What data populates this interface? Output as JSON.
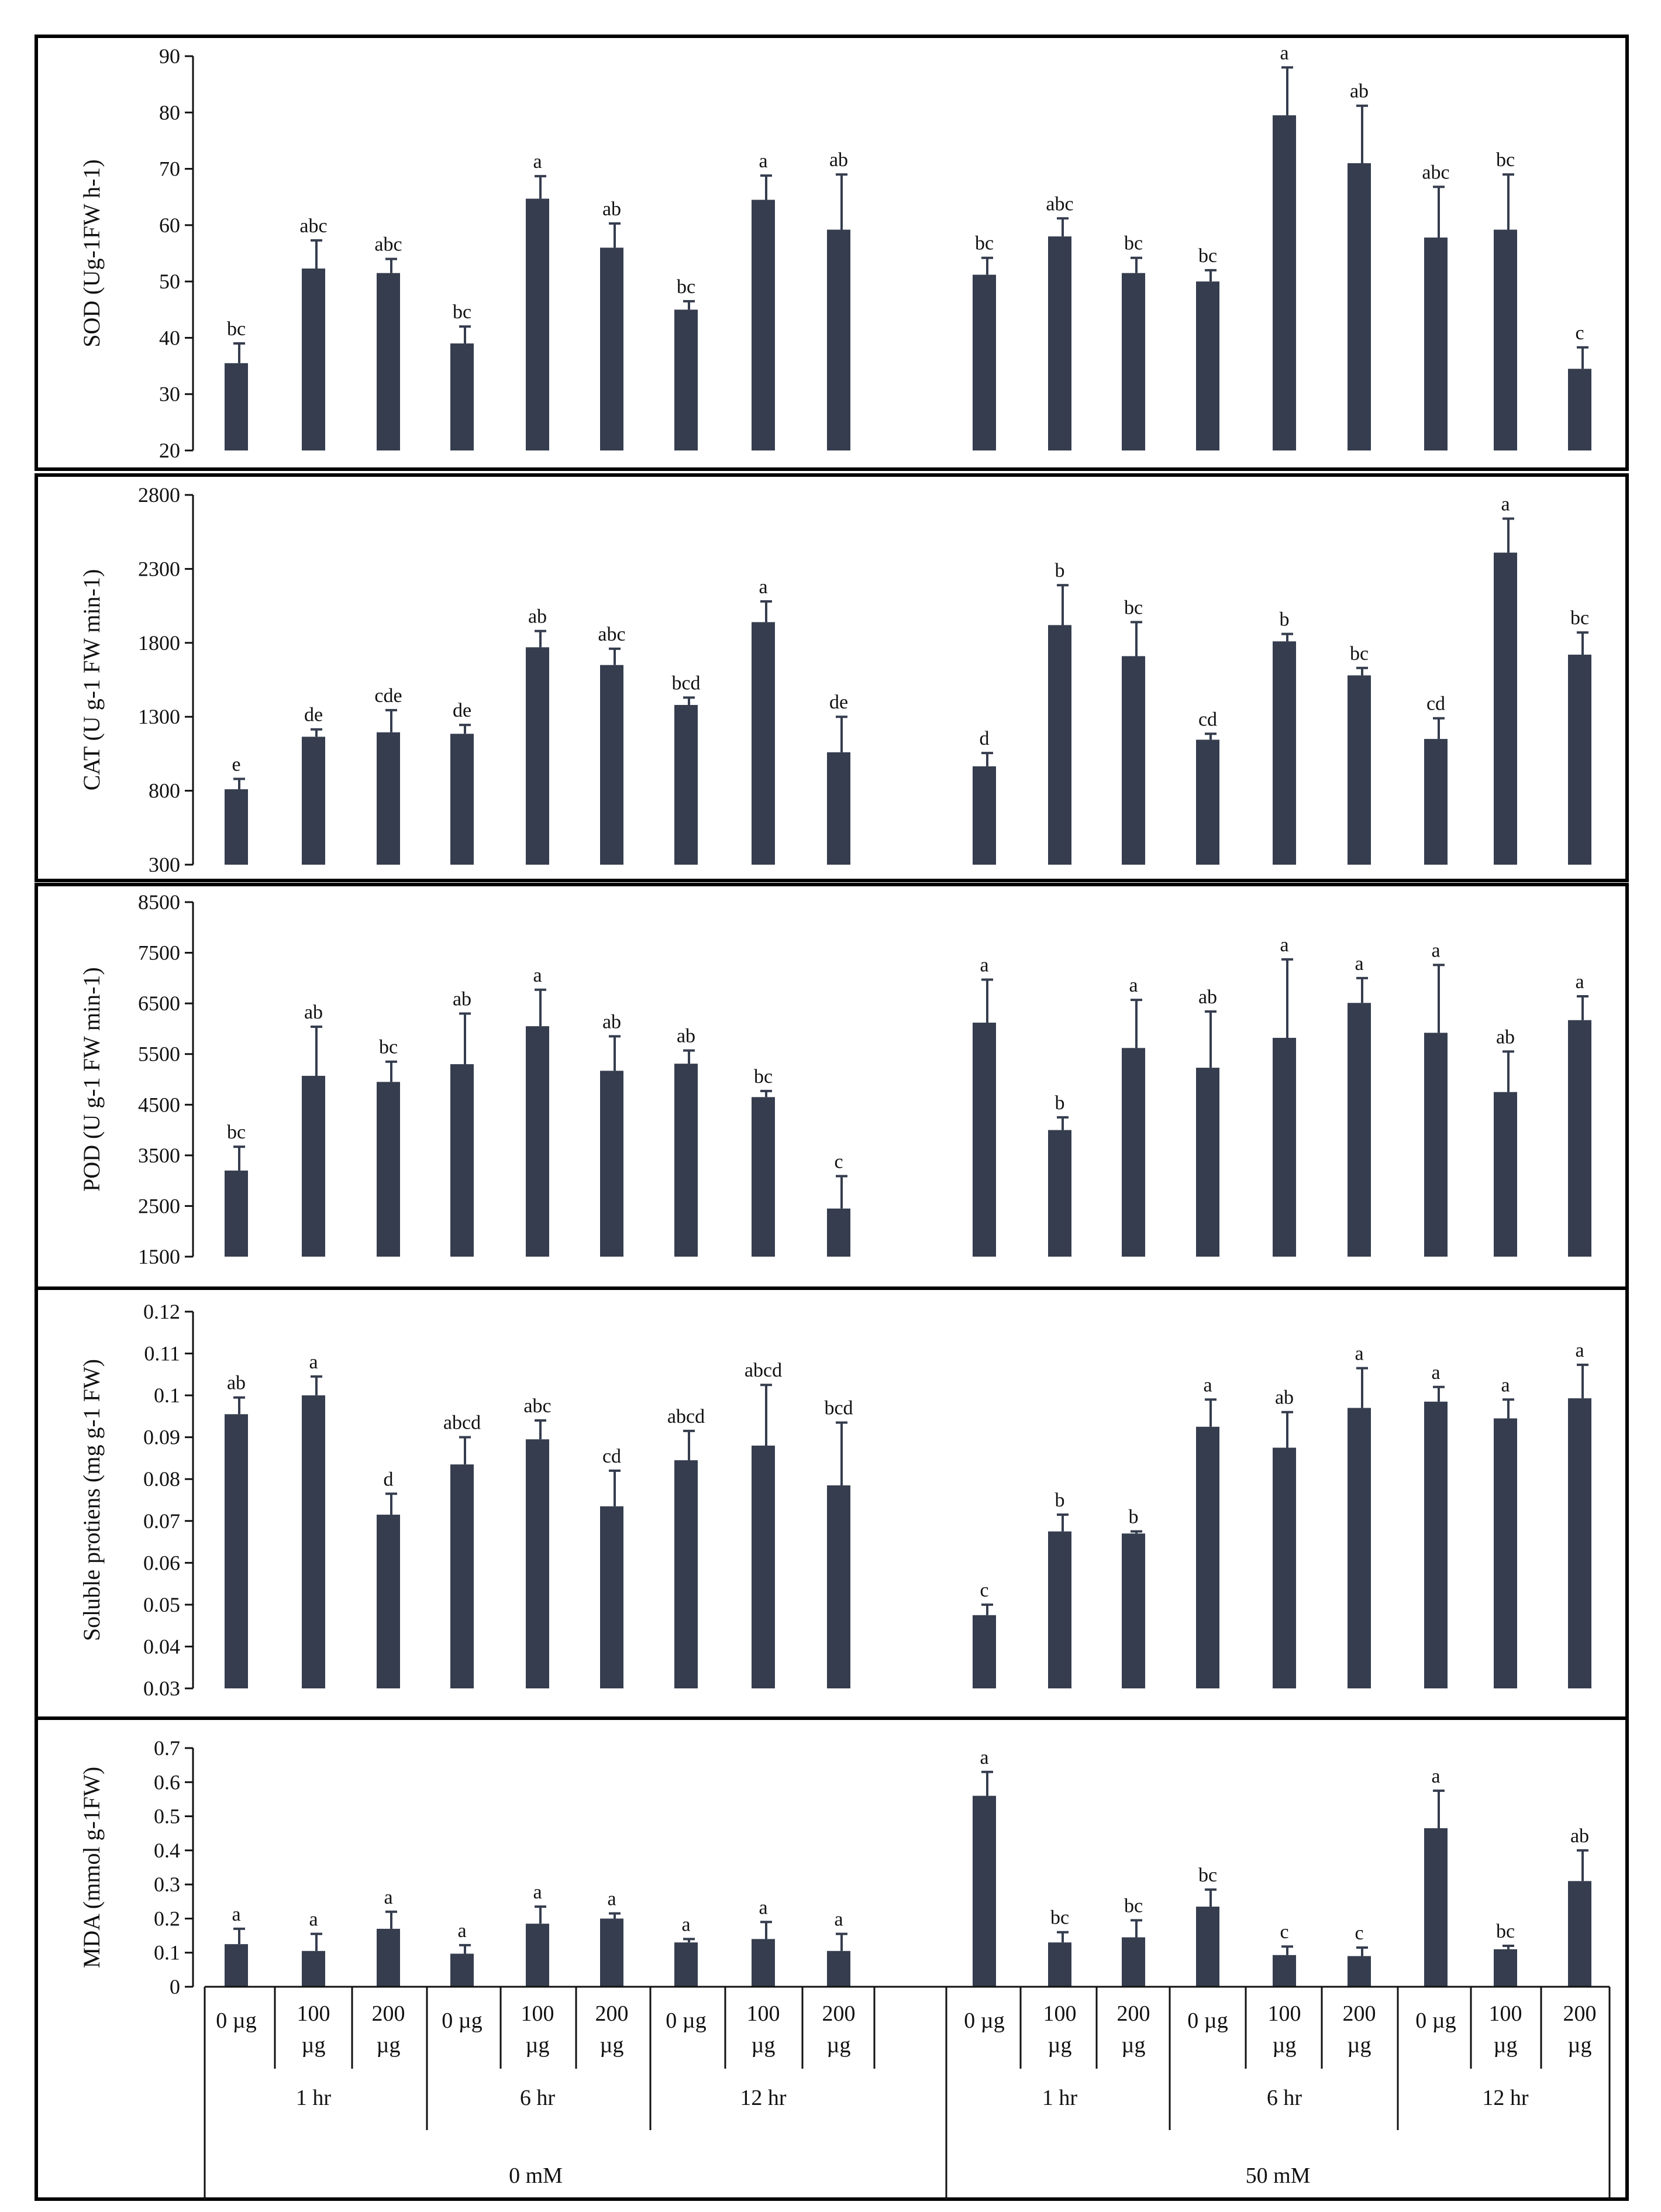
{
  "colors": {
    "bar": "#353d4e",
    "axis": "#111111",
    "frame": "#000000"
  },
  "categories": {
    "doses": [
      "0 µg",
      "100 µg",
      "200 µg"
    ],
    "dose_lines": [
      [
        "0 µg"
      ],
      [
        "100",
        "µg"
      ],
      [
        "200",
        "µg"
      ]
    ],
    "times": [
      "1 hr",
      "6 hr",
      "12 hr"
    ],
    "salt": [
      "0 mM",
      "50 mM"
    ]
  },
  "chart_data": [
    {
      "type": "bar",
      "title": "",
      "ylabel": "SOD (Ug-1FW h-1)",
      "ylim": [
        20,
        90
      ],
      "yticks": [
        20,
        30,
        40,
        50,
        60,
        70,
        80,
        90
      ],
      "groups": [
        "0 mM",
        "50 mM"
      ],
      "values": [
        [
          35.5,
          52.3,
          51.5,
          39.0,
          64.7,
          56.0,
          45.0,
          64.5,
          59.2
        ],
        [
          51.2,
          58.0,
          51.5,
          50.0,
          79.5,
          71.0,
          57.8,
          59.2,
          34.5
        ]
      ],
      "errors": [
        [
          3.5,
          5.0,
          2.5,
          3.0,
          4.0,
          4.3,
          1.5,
          4.3,
          9.8
        ],
        [
          3.0,
          3.2,
          2.7,
          2.0,
          8.5,
          10.2,
          9.0,
          9.8,
          3.8
        ]
      ],
      "labels": [
        [
          "bc",
          "abc",
          "abc",
          "bc",
          "a",
          "ab",
          "bc",
          "a",
          "ab"
        ],
        [
          "bc",
          "abc",
          "bc",
          "bc",
          "a",
          "ab",
          "abc",
          "bc",
          "c"
        ]
      ]
    },
    {
      "type": "bar",
      "title": "",
      "ylabel": "CAT (U g-1 FW min-1)",
      "ylim": [
        300,
        2800
      ],
      "yticks": [
        300,
        800,
        1300,
        1800,
        2300,
        2800
      ],
      "groups": [
        "0 mM",
        "50 mM"
      ],
      "values": [
        [
          810,
          1165,
          1195,
          1185,
          1770,
          1650,
          1380,
          1940,
          1060
        ],
        [
          965,
          1920,
          1710,
          1145,
          1810,
          1580,
          1150,
          2410,
          1720
        ]
      ],
      "errors": [
        [
          70,
          50,
          150,
          60,
          110,
          110,
          50,
          140,
          240
        ],
        [
          90,
          270,
          230,
          40,
          50,
          50,
          140,
          230,
          150
        ]
      ],
      "labels": [
        [
          "e",
          "de",
          "cde",
          "de",
          "ab",
          "abc",
          "bcd",
          "a",
          "de"
        ],
        [
          "d",
          "b",
          "bc",
          "cd",
          "b",
          "bc",
          "cd",
          "a",
          "bc"
        ]
      ]
    },
    {
      "type": "bar",
      "title": "",
      "ylabel": "POD (U g-1 FW min-1)",
      "ylim": [
        1500,
        8500
      ],
      "yticks": [
        1500,
        2500,
        3500,
        4500,
        5500,
        6500,
        7500,
        8500
      ],
      "groups": [
        "0 mM",
        "50 mM"
      ],
      "values": [
        [
          3200,
          5070,
          4950,
          5300,
          6050,
          5170,
          5310,
          4650,
          2450
        ],
        [
          6120,
          4000,
          5620,
          5230,
          5820,
          6510,
          5920,
          4750,
          6170
        ]
      ],
      "errors": [
        [
          470,
          970,
          400,
          1000,
          720,
          680,
          260,
          120,
          640
        ],
        [
          850,
          250,
          950,
          1110,
          1550,
          490,
          1340,
          800,
          470
        ]
      ],
      "labels": [
        [
          "bc",
          "ab",
          "bc",
          "ab",
          "a",
          "ab",
          "ab",
          "bc",
          "c"
        ],
        [
          "a",
          "b",
          "a",
          "ab",
          "a",
          "a",
          "a",
          "ab",
          "a"
        ]
      ]
    },
    {
      "type": "bar",
      "title": "",
      "ylabel": "Soluble protiens (mg g-1 FW)",
      "ylim": [
        0.03,
        0.12
      ],
      "yticks": [
        0.03,
        0.04,
        0.05,
        0.06,
        0.07,
        0.08,
        0.09,
        0.1,
        0.11,
        0.12
      ],
      "groups": [
        "0 mM",
        "50 mM"
      ],
      "values": [
        [
          0.0955,
          0.1,
          0.0715,
          0.0835,
          0.0895,
          0.0735,
          0.0845,
          0.088,
          0.0785
        ],
        [
          0.0475,
          0.0675,
          0.067,
          0.0925,
          0.0875,
          0.097,
          0.0985,
          0.0945,
          0.0993
        ]
      ],
      "errors": [
        [
          0.004,
          0.0045,
          0.005,
          0.0065,
          0.0045,
          0.0085,
          0.007,
          0.0145,
          0.015
        ],
        [
          0.0025,
          0.004,
          0.0005,
          0.0065,
          0.0085,
          0.0095,
          0.0035,
          0.0045,
          0.008
        ]
      ],
      "labels": [
        [
          "ab",
          "a",
          "d",
          "abcd",
          "abc",
          "cd",
          "abcd",
          "abcd",
          "bcd"
        ],
        [
          "c",
          "b",
          "b",
          "a",
          "ab",
          "a",
          "a",
          "a",
          "a"
        ]
      ]
    },
    {
      "type": "bar",
      "title": "",
      "ylabel": "MDA (mmol g-1FW)",
      "ylim": [
        0,
        0.7
      ],
      "yticks": [
        0,
        0.1,
        0.2,
        0.3,
        0.4,
        0.5,
        0.6,
        0.7
      ],
      "groups": [
        "0 mM",
        "50 mM"
      ],
      "values": [
        [
          0.125,
          0.105,
          0.17,
          0.097,
          0.185,
          0.2,
          0.13,
          0.14,
          0.105
        ],
        [
          0.56,
          0.13,
          0.145,
          0.235,
          0.093,
          0.09,
          0.465,
          0.11,
          0.31
        ]
      ],
      "errors": [
        [
          0.045,
          0.05,
          0.05,
          0.025,
          0.05,
          0.015,
          0.01,
          0.05,
          0.05
        ],
        [
          0.07,
          0.03,
          0.05,
          0.05,
          0.025,
          0.025,
          0.11,
          0.01,
          0.09
        ]
      ],
      "labels": [
        [
          "a",
          "a",
          "a",
          "a",
          "a",
          "a",
          "a",
          "a",
          "a"
        ],
        [
          "a",
          "bc",
          "bc",
          "bc",
          "c",
          "c",
          "a",
          "bc",
          "ab"
        ]
      ]
    }
  ]
}
